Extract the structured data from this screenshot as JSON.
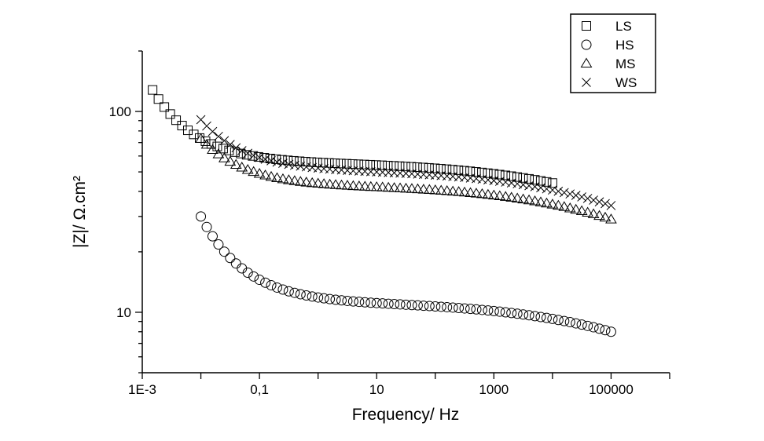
{
  "chart_data": {
    "type": "scatter",
    "xscale": "log",
    "yscale": "log",
    "xlim": [
      0.001,
      1000000
    ],
    "ylim": [
      5,
      200
    ],
    "xlabel": "Frequency/ Hz",
    "ylabel": "|Z|/ Ω.cm²",
    "xtick_labels": [
      {
        "value": 0.001,
        "label": "1E-3"
      },
      {
        "value": 0.1,
        "label": "0,1"
      },
      {
        "value": 10,
        "label": "10"
      },
      {
        "value": 1000,
        "label": "1000"
      },
      {
        "value": 100000,
        "label": "100000"
      }
    ],
    "ytick_labels": [
      {
        "value": 10,
        "label": "10"
      },
      {
        "value": 100,
        "label": "100"
      }
    ],
    "legend_position": "top-right",
    "series": [
      {
        "name": "LS",
        "marker": "square",
        "x_range": [
          0.0015,
          10000
        ],
        "y_start": 128,
        "y_mid": 55,
        "y_end": 44
      },
      {
        "name": "HS",
        "marker": "circle",
        "x_range": [
          0.01,
          100000
        ],
        "y_start": 30,
        "y_mid": 11,
        "y_end": 8
      },
      {
        "name": "MS",
        "marker": "triangle",
        "x_range": [
          0.01,
          100000
        ],
        "y_start": 73,
        "y_mid": 42,
        "y_end": 29
      },
      {
        "name": "WS",
        "marker": "x",
        "x_range": [
          0.01,
          100000
        ],
        "y_start": 91,
        "y_mid": 50,
        "y_end": 34
      }
    ],
    "grid": false
  }
}
